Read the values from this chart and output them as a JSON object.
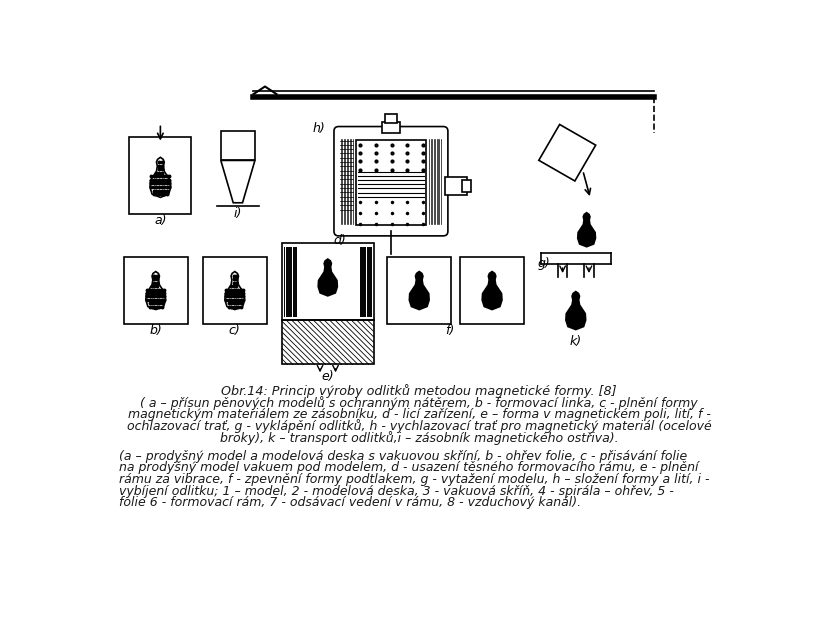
{
  "title_line": "Obr.14: Princip výroby odlitků metodou magnetické formy. [8]",
  "caption_lines": [
    "( a – přísun pěnových modelů s ochranným nátěrem, b - formovací linka, c - plnění formy",
    "magnetickým materiálem ze zásobníku, d - licí zařízení, e – forma v magnetickém poli, lití, f -",
    "ochlazovací trať, g - vyklápění odlitků, h - vychlazovací trať pro magnetický materiál (ocelové",
    "broky), k – transport odlitků,i – zásobník magnetického ostřiva)."
  ],
  "caption2_lines": [
    "(a – prodyšný model a modelová deska s vakuovou skříní, b - ohřev folie, c - přisávání folie",
    "na prodyšný model vakuem pod modelem, d - usazení těsného formovacího rámu, e - plnění",
    "rámu za vibrace, f - zpevnění formy podtlakem, g - vytažení modelu, h – složení formy a lití, i -",
    "vybíjení odlitku; 1 – model, 2 - modelová deska, 3 - vakuová skříň, 4 - spirála – ohřev, 5 -",
    "folie 6 - formovací rám, 7 - odsávací vedení v rámu, 8 - vzduchový kanál)."
  ],
  "bg_color": "#ffffff",
  "text_color": "#1a1a1a",
  "font_size_title": 9.2,
  "font_size_caption": 9.0
}
